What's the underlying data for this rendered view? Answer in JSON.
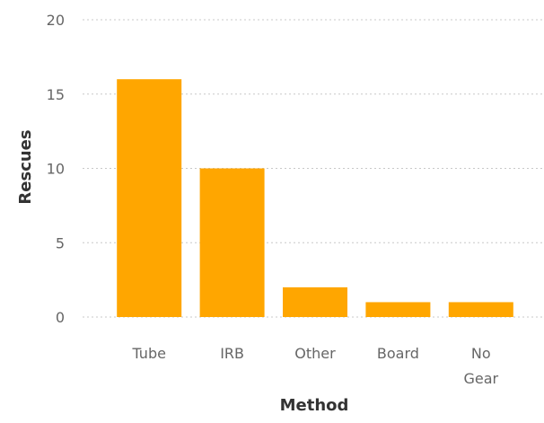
{
  "chart_data": {
    "type": "bar",
    "categories": [
      "Tube",
      "IRB",
      "Other",
      "Board",
      "No Gear"
    ],
    "category_lines": [
      [
        "Tube"
      ],
      [
        "IRB"
      ],
      [
        "Other"
      ],
      [
        "Board"
      ],
      [
        "No",
        "Gear"
      ]
    ],
    "values": [
      16,
      10,
      2,
      1,
      1
    ],
    "xlabel": "Method",
    "ylabel": "Rescues",
    "ylim": [
      0,
      20
    ],
    "yticks": [
      0,
      5,
      10,
      15,
      20
    ],
    "grid": true,
    "bar_color": "#ffa600"
  }
}
